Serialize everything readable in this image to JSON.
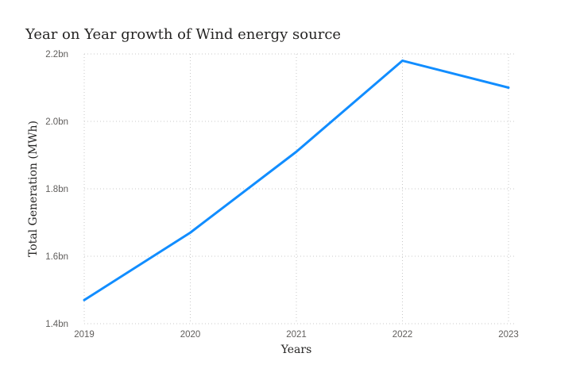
{
  "chart_data": {
    "type": "line",
    "title": "Year on Year growth of Wind energy source",
    "xlabel": "Years",
    "ylabel": "Total Generation (MWh)",
    "categories": [
      "2019",
      "2020",
      "2021",
      "2022",
      "2023"
    ],
    "values": [
      1.47,
      1.67,
      1.91,
      2.18,
      2.1
    ],
    "value_unit": "bn",
    "ylim": [
      1.4,
      2.2
    ],
    "yticks": [
      1.4,
      1.6,
      1.8,
      2.0,
      2.2
    ],
    "ytick_labels": [
      "1.4bn",
      "1.6bn",
      "1.8bn",
      "2.0bn",
      "2.2bn"
    ],
    "grid": true,
    "line_color": "#118DFF"
  }
}
